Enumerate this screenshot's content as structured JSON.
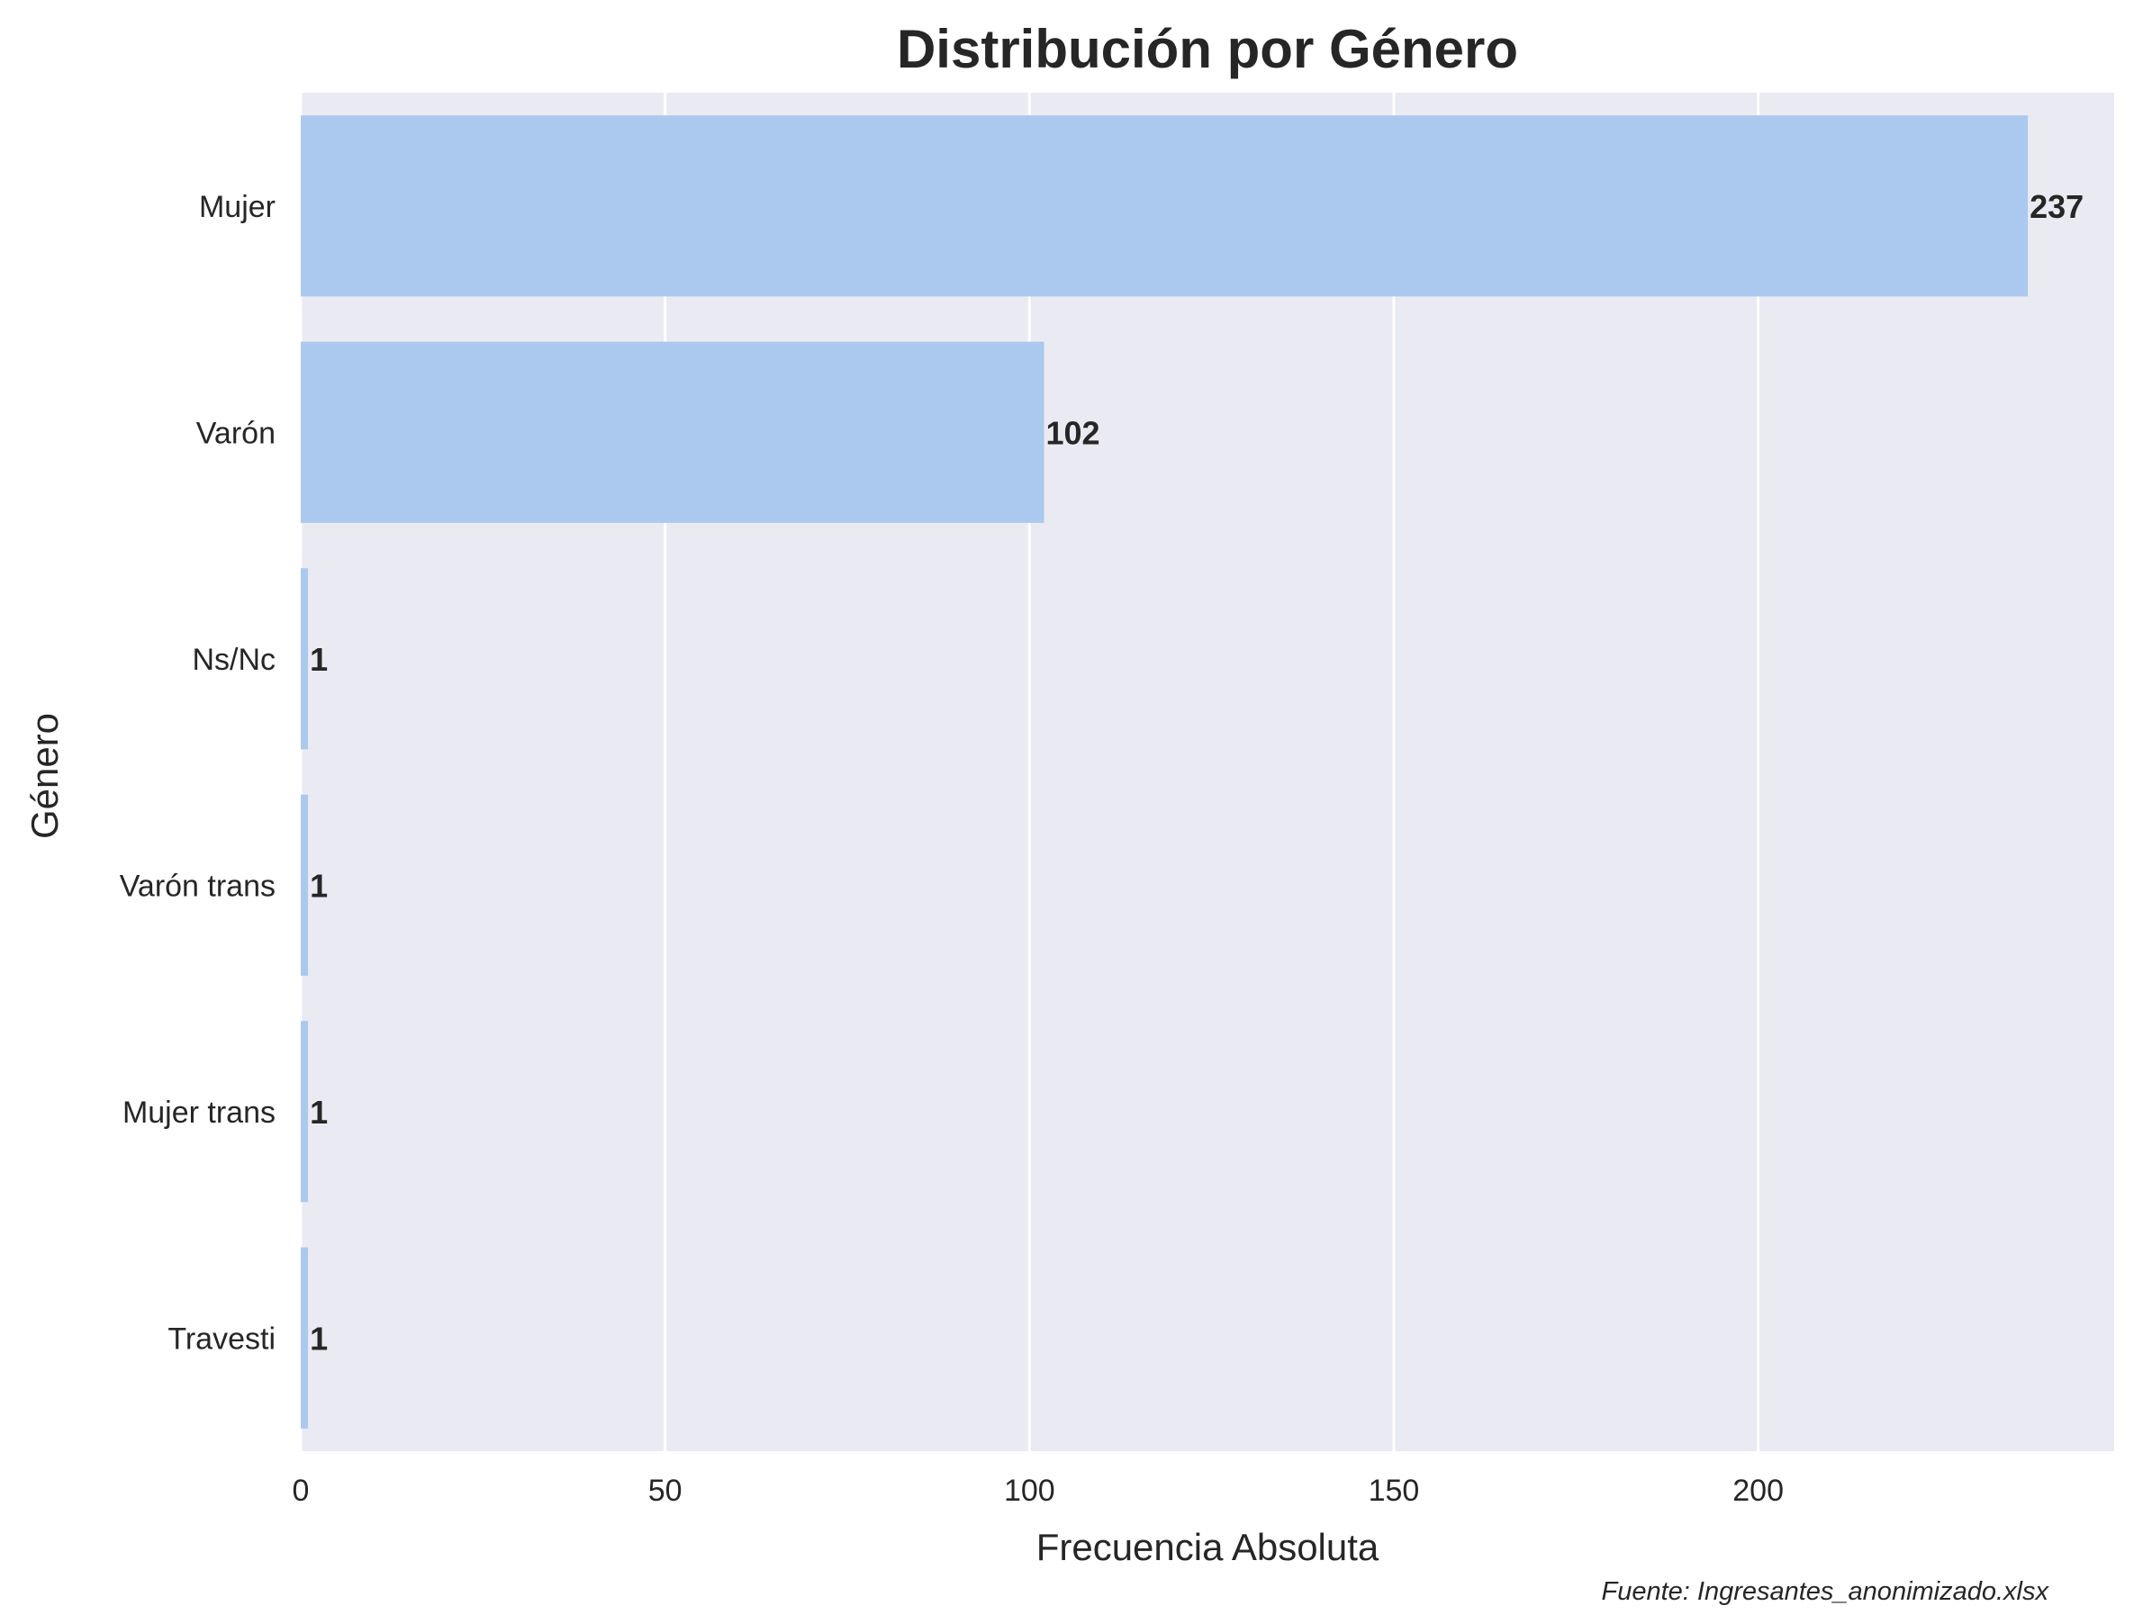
{
  "chart_data": {
    "type": "bar",
    "orientation": "horizontal",
    "title": "Distribución por Género",
    "xlabel": "Frecuencia Absoluta",
    "ylabel": "Género",
    "categories": [
      "Mujer",
      "Varón",
      "Ns/Nc",
      "Varón trans",
      "Mujer trans",
      "Travesti"
    ],
    "values": [
      237,
      102,
      1,
      1,
      1,
      1
    ],
    "xlim": [
      0,
      248.85
    ],
    "xticks": [
      0,
      50,
      100,
      150,
      200
    ],
    "grid": "vertical",
    "bar_color": "#abc9ee",
    "background_color": "#eaeaf2",
    "source_note": "Fuente: Ingresantes_anonimizado.xlsx"
  }
}
